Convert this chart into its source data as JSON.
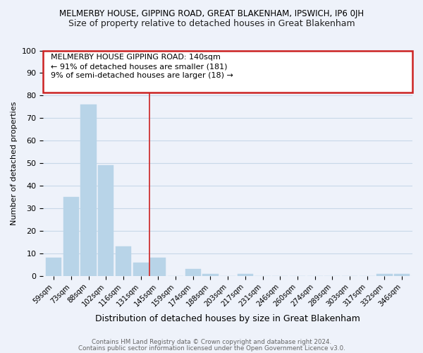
{
  "title": "MELMERBY HOUSE, GIPPING ROAD, GREAT BLAKENHAM, IPSWICH, IP6 0JH",
  "subtitle": "Size of property relative to detached houses in Great Blakenham",
  "xlabel": "Distribution of detached houses by size in Great Blakenham",
  "ylabel": "Number of detached properties",
  "bar_labels": [
    "59sqm",
    "73sqm",
    "88sqm",
    "102sqm",
    "116sqm",
    "131sqm",
    "145sqm",
    "159sqm",
    "174sqm",
    "188sqm",
    "203sqm",
    "217sqm",
    "231sqm",
    "246sqm",
    "260sqm",
    "274sqm",
    "289sqm",
    "303sqm",
    "317sqm",
    "332sqm",
    "346sqm"
  ],
  "bar_values": [
    8,
    35,
    76,
    49,
    13,
    6,
    8,
    0,
    3,
    1,
    0,
    1,
    0,
    0,
    0,
    0,
    0,
    0,
    0,
    1,
    1
  ],
  "bar_color": "#b8d4e8",
  "redline_after_index": 5,
  "annotation_line1": "MELMERBY HOUSE GIPPING ROAD: 140sqm",
  "annotation_line2": "← 91% of detached houses are smaller (181)",
  "annotation_line3": "9% of semi-detached houses are larger (18) →",
  "annotation_box_color": "#cc2222",
  "ylim": [
    0,
    100
  ],
  "yticks": [
    0,
    10,
    20,
    30,
    40,
    50,
    60,
    70,
    80,
    90,
    100
  ],
  "grid_color": "#c8d8e8",
  "background_color": "#eef2fa",
  "footer1": "Contains HM Land Registry data © Crown copyright and database right 2024.",
  "footer2": "Contains public sector information licensed under the Open Government Licence v3.0."
}
